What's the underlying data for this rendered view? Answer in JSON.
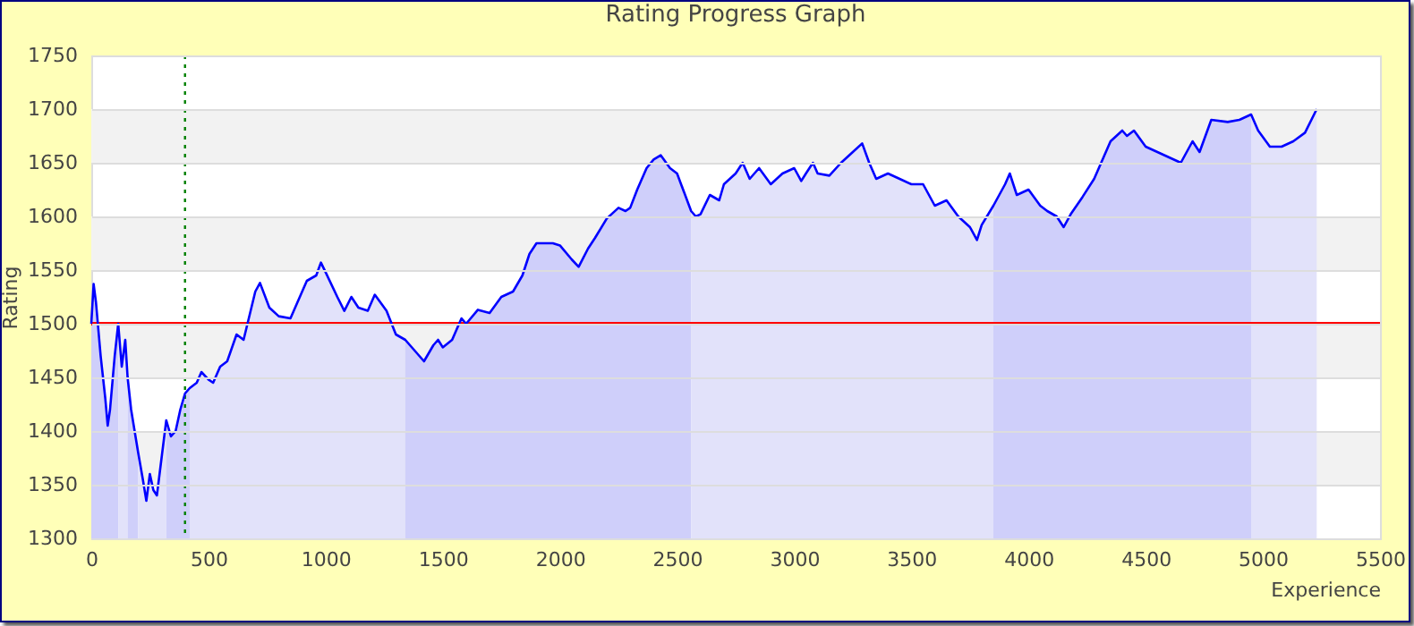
{
  "chart_data": {
    "type": "line",
    "title": "Rating Progress Graph",
    "xlabel": "Experience",
    "ylabel": "Rating",
    "xlim": [
      0,
      5500
    ],
    "xticks": [
      0,
      500,
      1000,
      1500,
      2000,
      2500,
      3000,
      3500,
      4000,
      4500,
      5000,
      5500
    ],
    "ylim": [
      1300,
      1750
    ],
    "yticks": [
      1300,
      1350,
      1400,
      1450,
      1500,
      1550,
      1600,
      1650,
      1700,
      1750
    ],
    "grid": "y",
    "bands": [
      {
        "axis": "y",
        "from": 1650,
        "to": 1700,
        "color": "#f2f2f2"
      },
      {
        "axis": "y",
        "from": 1550,
        "to": 1600,
        "color": "#f2f2f2"
      },
      {
        "axis": "y",
        "from": 1450,
        "to": 1500,
        "color": "#f2f2f2"
      },
      {
        "axis": "y",
        "from": 1350,
        "to": 1400,
        "color": "#f2f2f2"
      }
    ],
    "ref_lines": [
      {
        "axis": "y",
        "value": 1500,
        "color": "#ff0000",
        "line_style": "solid"
      },
      {
        "axis": "x",
        "value": 400,
        "color": "#008000",
        "line_style": "dotted"
      }
    ],
    "series": [
      {
        "type": "area",
        "color": "#cfcffa",
        "x": [
          0,
          10,
          20,
          40,
          60,
          70,
          80,
          100,
          115
        ],
        "values": [
          1500,
          1537,
          1520,
          1470,
          1430,
          1405,
          1420,
          1470,
          1500
        ]
      },
      {
        "type": "area",
        "color": "#e2e2fa",
        "x": [
          115,
          130,
          145,
          155
        ],
        "values": [
          1500,
          1460,
          1485,
          1450
        ]
      },
      {
        "type": "area",
        "color": "#cfcffa",
        "x": [
          155,
          170,
          200
        ],
        "values": [
          1450,
          1420,
          1380
        ]
      },
      {
        "type": "area",
        "color": "#e2e2fa",
        "x": [
          200,
          220,
          235,
          250,
          265,
          280,
          300,
          320
        ],
        "values": [
          1380,
          1355,
          1335,
          1360,
          1345,
          1340,
          1375,
          1410
        ]
      },
      {
        "type": "area",
        "color": "#cfcffa",
        "x": [
          320,
          340,
          360,
          380,
          400,
          420
        ],
        "values": [
          1410,
          1395,
          1400,
          1420,
          1435,
          1440
        ]
      },
      {
        "type": "area",
        "color": "#e2e2fa",
        "x": [
          420,
          450,
          470,
          500,
          520,
          550,
          580,
          620,
          650,
          700,
          720,
          760,
          800,
          850,
          880,
          920,
          960,
          980,
          1000,
          1050,
          1080,
          1110,
          1140,
          1180,
          1210,
          1260,
          1300,
          1340
        ],
        "values": [
          1440,
          1445,
          1455,
          1448,
          1445,
          1460,
          1465,
          1490,
          1485,
          1530,
          1538,
          1515,
          1507,
          1505,
          1520,
          1540,
          1545,
          1557,
          1548,
          1525,
          1512,
          1525,
          1515,
          1512,
          1527,
          1512,
          1490,
          1485
        ]
      },
      {
        "type": "area",
        "color": "#cfcffa",
        "x": [
          1340,
          1380,
          1420,
          1460,
          1480,
          1500,
          1540,
          1580,
          1600,
          1650,
          1700,
          1750,
          1800,
          1840,
          1870,
          1900,
          1930,
          1970,
          2000,
          2050,
          2080,
          2120,
          2150,
          2200,
          2250,
          2280,
          2300,
          2330,
          2370,
          2400,
          2430,
          2470,
          2500,
          2560
        ],
        "values": [
          1485,
          1475,
          1465,
          1480,
          1485,
          1478,
          1485,
          1505,
          1500,
          1513,
          1510,
          1525,
          1530,
          1545,
          1565,
          1575,
          1575,
          1575,
          1573,
          1560,
          1553,
          1570,
          1580,
          1598,
          1608,
          1605,
          1608,
          1625,
          1645,
          1653,
          1657,
          1645,
          1640,
          1605
        ]
      },
      {
        "type": "area",
        "color": "#e2e2fa",
        "x": [
          2560,
          2580,
          2600,
          2640,
          2680,
          2700,
          2750,
          2780,
          2810,
          2850,
          2900,
          2950,
          3000,
          3030,
          3050,
          3080,
          3100,
          3150,
          3200,
          3250,
          3290,
          3320,
          3350,
          3400,
          3450,
          3500,
          3550,
          3600,
          3650,
          3700,
          3750,
          3780,
          3800,
          3850
        ],
        "values": [
          1605,
          1600,
          1602,
          1620,
          1615,
          1630,
          1640,
          1650,
          1635,
          1645,
          1630,
          1640,
          1645,
          1633,
          1640,
          1650,
          1640,
          1638,
          1650,
          1660,
          1668,
          1650,
          1635,
          1640,
          1635,
          1630,
          1630,
          1610,
          1615,
          1600,
          1590,
          1578,
          1592,
          1610
        ]
      },
      {
        "type": "area",
        "color": "#cfcffa",
        "x": [
          3850,
          3900,
          3920,
          3950,
          4000,
          4050,
          4080,
          4120,
          4150,
          4180,
          4230,
          4280,
          4300,
          4350,
          4400,
          4420,
          4450,
          4500,
          4550,
          4600,
          4650,
          4700,
          4730,
          4780,
          4850,
          4900,
          4950
        ],
        "values": [
          1610,
          1630,
          1640,
          1620,
          1625,
          1610,
          1605,
          1600,
          1590,
          1602,
          1618,
          1635,
          1645,
          1670,
          1680,
          1675,
          1680,
          1665,
          1660,
          1655,
          1650,
          1670,
          1660,
          1690,
          1688,
          1690,
          1695
        ]
      },
      {
        "type": "area",
        "color": "#e2e2fa",
        "x": [
          4950,
          4980,
          5030,
          5080,
          5130,
          5180,
          5230
        ],
        "values": [
          1695,
          1680,
          1665,
          1665,
          1670,
          1678,
          1700
        ]
      },
      {
        "color": "#0000ff",
        "x": [
          0,
          10,
          20,
          40,
          60,
          70,
          80,
          100,
          115,
          130,
          145,
          155,
          170,
          200,
          220,
          235,
          250,
          265,
          280,
          300,
          320,
          340,
          360,
          380,
          400,
          420,
          450,
          470,
          500,
          520,
          550,
          580,
          620,
          650,
          700,
          720,
          760,
          800,
          850,
          880,
          920,
          960,
          980,
          1000,
          1050,
          1080,
          1110,
          1140,
          1180,
          1210,
          1260,
          1300,
          1340,
          1380,
          1420,
          1460,
          1480,
          1500,
          1540,
          1580,
          1600,
          1650,
          1700,
          1750,
          1800,
          1840,
          1870,
          1900,
          1930,
          1970,
          2000,
          2050,
          2080,
          2120,
          2150,
          2200,
          2250,
          2280,
          2300,
          2330,
          2370,
          2400,
          2430,
          2470,
          2500,
          2560,
          2580,
          2600,
          2640,
          2680,
          2700,
          2750,
          2780,
          2810,
          2850,
          2900,
          2950,
          3000,
          3030,
          3050,
          3080,
          3100,
          3150,
          3200,
          3250,
          3290,
          3320,
          3350,
          3400,
          3450,
          3500,
          3550,
          3600,
          3650,
          3700,
          3750,
          3780,
          3800,
          3850,
          3900,
          3920,
          3950,
          4000,
          4050,
          4080,
          4120,
          4150,
          4180,
          4230,
          4280,
          4300,
          4350,
          4400,
          4420,
          4450,
          4500,
          4550,
          4600,
          4650,
          4700,
          4730,
          4780,
          4850,
          4900,
          4950,
          4980,
          5030,
          5080,
          5130,
          5180,
          5230
        ],
        "values": [
          1500,
          1537,
          1520,
          1470,
          1430,
          1405,
          1420,
          1470,
          1500,
          1460,
          1485,
          1450,
          1420,
          1380,
          1355,
          1335,
          1360,
          1345,
          1340,
          1375,
          1410,
          1395,
          1400,
          1420,
          1435,
          1440,
          1445,
          1455,
          1448,
          1445,
          1460,
          1465,
          1490,
          1485,
          1530,
          1538,
          1515,
          1507,
          1505,
          1520,
          1540,
          1545,
          1557,
          1548,
          1525,
          1512,
          1525,
          1515,
          1512,
          1527,
          1512,
          1490,
          1485,
          1475,
          1465,
          1480,
          1485,
          1478,
          1485,
          1505,
          1500,
          1513,
          1510,
          1525,
          1530,
          1545,
          1565,
          1575,
          1575,
          1575,
          1573,
          1560,
          1553,
          1570,
          1580,
          1598,
          1608,
          1605,
          1608,
          1625,
          1645,
          1653,
          1657,
          1645,
          1640,
          1605,
          1600,
          1602,
          1620,
          1615,
          1630,
          1640,
          1650,
          1635,
          1645,
          1630,
          1640,
          1645,
          1633,
          1640,
          1650,
          1640,
          1638,
          1650,
          1660,
          1668,
          1650,
          1635,
          1640,
          1635,
          1630,
          1630,
          1610,
          1615,
          1600,
          1590,
          1578,
          1592,
          1610,
          1630,
          1640,
          1620,
          1625,
          1610,
          1605,
          1600,
          1590,
          1602,
          1618,
          1635,
          1645,
          1670,
          1680,
          1675,
          1680,
          1665,
          1660,
          1655,
          1650,
          1670,
          1660,
          1690,
          1688,
          1690,
          1695,
          1680,
          1665,
          1665,
          1670,
          1678,
          1700
        ]
      }
    ]
  }
}
